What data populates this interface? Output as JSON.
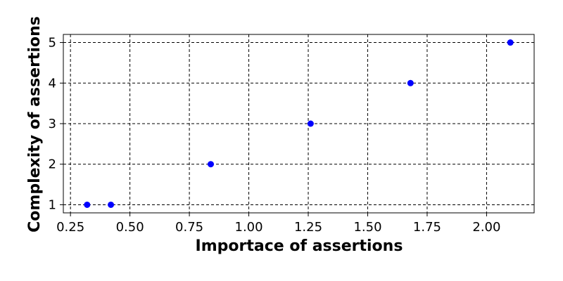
{
  "chart_data": {
    "type": "scatter",
    "title": "",
    "xlabel": "Importace of assertions",
    "ylabel": "Complexity of assertions",
    "xlim": [
      0.22,
      2.2
    ],
    "ylim": [
      0.8,
      5.2
    ],
    "xticks": [
      0.25,
      0.5,
      0.75,
      1.0,
      1.25,
      1.5,
      1.75,
      2.0
    ],
    "xtick_labels": [
      "0.25",
      "0.50",
      "0.75",
      "1.00",
      "1.25",
      "1.50",
      "1.75",
      "2.00"
    ],
    "yticks": [
      1,
      2,
      3,
      4,
      5
    ],
    "ytick_labels": [
      "1",
      "2",
      "3",
      "4",
      "5"
    ],
    "grid": true,
    "grid_style": "dashed",
    "legend": "none",
    "marker_color": "#0000ff",
    "series": [
      {
        "points": [
          {
            "x": 0.32,
            "y": 1
          },
          {
            "x": 0.42,
            "y": 1
          },
          {
            "x": 0.84,
            "y": 2
          },
          {
            "x": 1.26,
            "y": 3
          },
          {
            "x": 1.68,
            "y": 4
          },
          {
            "x": 2.1,
            "y": 5
          }
        ]
      }
    ]
  }
}
